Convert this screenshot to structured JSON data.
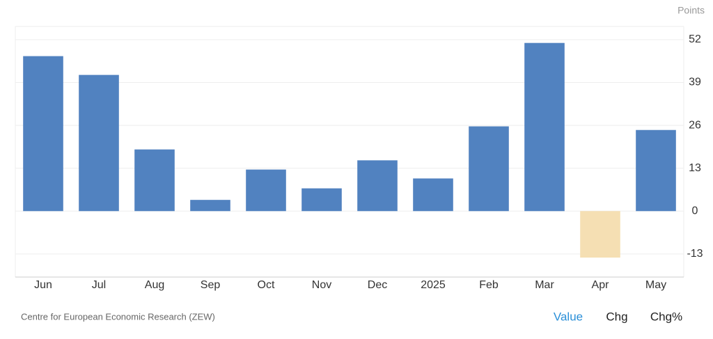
{
  "chart_data": {
    "type": "bar",
    "unit_label": "Points",
    "categories": [
      "Jun",
      "Jul",
      "Aug",
      "Sep",
      "Oct",
      "Nov",
      "Dec",
      "2025",
      "Feb",
      "Mar",
      "Apr",
      "May"
    ],
    "values": [
      47,
      41.3,
      18.7,
      3.4,
      12.6,
      6.9,
      15.4,
      9.9,
      25.7,
      51,
      -14.1,
      24.6
    ],
    "color": "#5182c0",
    "negative_color": "#f5dfb3",
    "ylim": [
      -20,
      56
    ],
    "yticks": [
      -13,
      0,
      13,
      26,
      39,
      52
    ],
    "grid": true
  },
  "footer": {
    "source": "Centre for European Economic Research (ZEW)",
    "tabs": [
      "Value",
      "Chg",
      "Chg%"
    ]
  }
}
